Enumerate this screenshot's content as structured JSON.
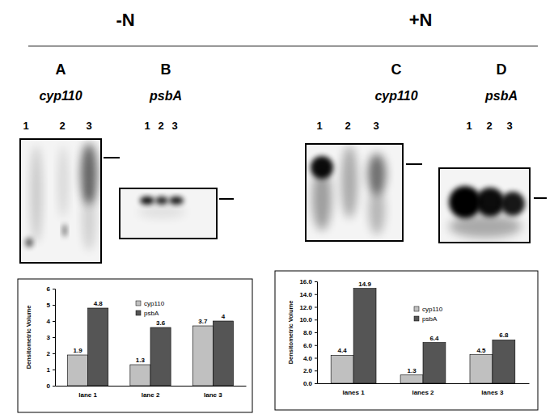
{
  "header": {
    "left": "-N",
    "right": "+N"
  },
  "panels": [
    {
      "letter": "A",
      "gene": "cyp110",
      "lanes": [
        "1",
        "2",
        "3"
      ]
    },
    {
      "letter": "B",
      "gene": "psbA",
      "lanes": [
        "1",
        "2",
        "3"
      ]
    },
    {
      "letter": "C",
      "gene": "cyp110",
      "lanes": [
        "1",
        "2",
        "3"
      ]
    },
    {
      "letter": "D",
      "gene": "psbA",
      "lanes": [
        "1",
        "2",
        "3"
      ]
    }
  ],
  "chart_data": [
    {
      "type": "bar",
      "y_label": "Densitometric Volume",
      "categories": [
        "lane 1",
        "lane 2",
        "lane 3"
      ],
      "series": [
        {
          "name": "cyp110",
          "color": "#c0c0c0",
          "values": [
            1.9,
            1.3,
            3.7
          ]
        },
        {
          "name": "psbA",
          "color": "#555555",
          "values": [
            4.8,
            3.6,
            4
          ]
        }
      ],
      "ylim": [
        0,
        6
      ],
      "yticks": [
        0,
        1,
        2,
        3,
        4,
        5,
        6
      ],
      "data_labels": true,
      "legend": "top",
      "grid": false
    },
    {
      "type": "bar",
      "y_label": "Densitometric Volume",
      "categories": [
        "lanes 1",
        "lanes 2",
        "lanes 3"
      ],
      "series": [
        {
          "name": "cyp110",
          "color": "#c0c0c0",
          "values": [
            4.4,
            1.3,
            4.5
          ]
        },
        {
          "name": "psbA",
          "color": "#555555",
          "values": [
            14.9,
            6.4,
            6.8
          ]
        }
      ],
      "ylim": [
        0,
        16
      ],
      "yticks": [
        {
          "value": 0,
          "label": "0.0"
        },
        {
          "value": 2,
          "label": "2.0"
        },
        {
          "value": 4,
          "label": "4.0"
        },
        {
          "value": 6,
          "label": "6.0"
        },
        {
          "value": 8,
          "label": "8.0"
        },
        {
          "value": 10,
          "label": "10.0"
        },
        {
          "value": 12,
          "label": "12.0"
        },
        {
          "value": 14,
          "label": "14.0"
        },
        {
          "value": 16,
          "label": "16.0"
        }
      ],
      "data_labels": true,
      "legend": "top",
      "grid": false
    }
  ]
}
